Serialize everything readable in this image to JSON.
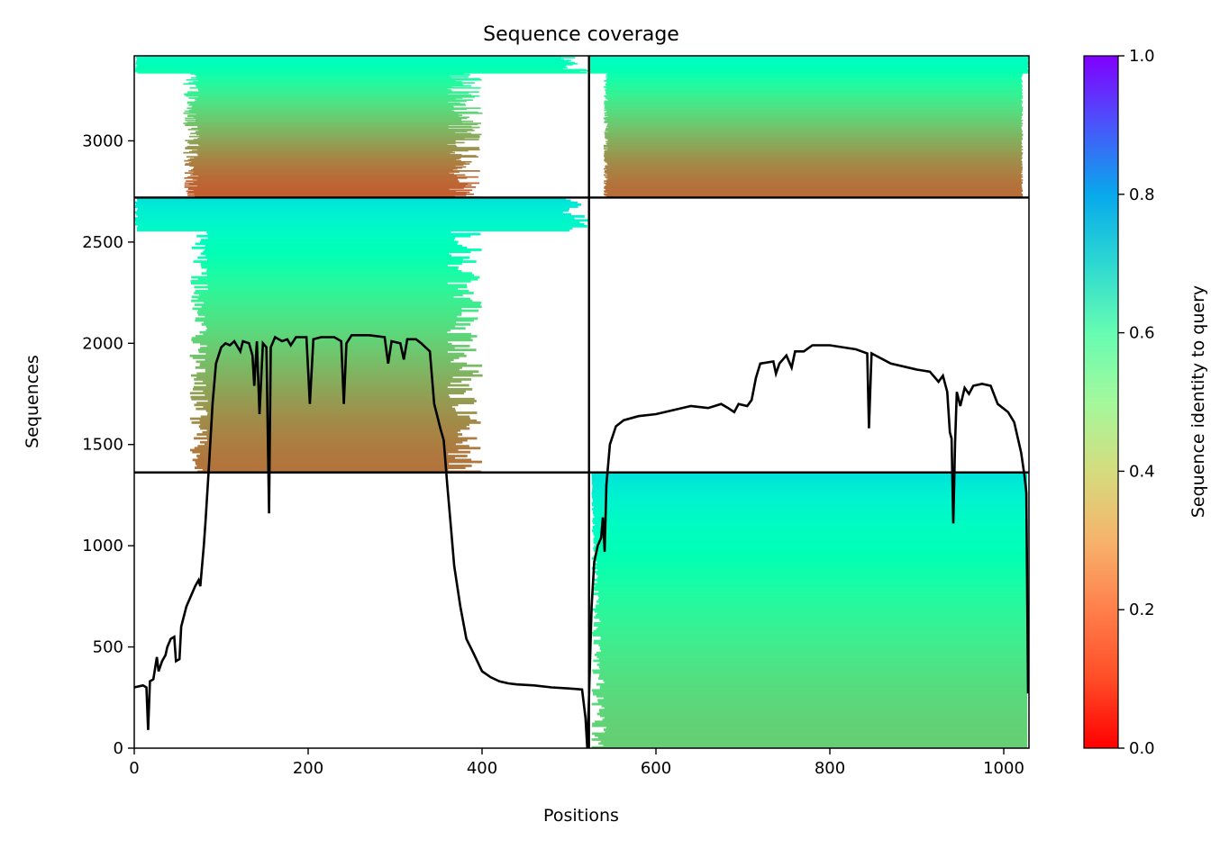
{
  "chart_data": {
    "type": "heatmap",
    "title": "Sequence coverage",
    "xlabel": "Positions",
    "ylabel": "Sequences",
    "xlim": [
      0,
      1029
    ],
    "ylim": [
      0,
      3420
    ],
    "xticks": [
      0,
      200,
      400,
      600,
      800,
      1000
    ],
    "yticks": [
      0,
      500,
      1000,
      1500,
      2000,
      2500,
      3000
    ],
    "grid": false,
    "colorbar": {
      "label": "Sequence identity to query",
      "colormap": "rainbow_r",
      "range": [
        0.0,
        1.0
      ],
      "ticks": [
        0.0,
        0.2,
        0.4,
        0.6,
        0.8,
        1.0
      ]
    },
    "blocks": {
      "divider_x": 523,
      "divider_y": [
        1362,
        2720
      ],
      "alignment_regions": [
        {
          "rows": [
            2720,
            3420
          ],
          "cols": [
            0,
            523
          ],
          "core_cols": [
            75,
            360
          ],
          "identity_range": [
            0.12,
            0.55
          ]
        },
        {
          "rows": [
            2720,
            3420
          ],
          "cols": [
            523,
            1029
          ],
          "core_cols": [
            545,
            1020
          ],
          "identity_range": [
            0.14,
            0.56
          ]
        },
        {
          "rows": [
            1362,
            2720
          ],
          "cols": [
            0,
            523
          ],
          "core_cols": [
            85,
            360
          ],
          "identity_range": [
            0.15,
            0.65
          ]
        },
        {
          "rows": [
            0,
            1362
          ],
          "cols": [
            523,
            1029
          ],
          "core_cols": [
            523,
            1029
          ],
          "identity_range": [
            0.3,
            0.65
          ]
        }
      ]
    },
    "coverage_line": [
      [
        0,
        300
      ],
      [
        10,
        310
      ],
      [
        14,
        300
      ],
      [
        16,
        90
      ],
      [
        18,
        330
      ],
      [
        22,
        340
      ],
      [
        26,
        450
      ],
      [
        28,
        380
      ],
      [
        32,
        430
      ],
      [
        36,
        460
      ],
      [
        38,
        500
      ],
      [
        42,
        540
      ],
      [
        46,
        550
      ],
      [
        48,
        430
      ],
      [
        52,
        440
      ],
      [
        54,
        600
      ],
      [
        60,
        700
      ],
      [
        66,
        760
      ],
      [
        70,
        800
      ],
      [
        74,
        830
      ],
      [
        76,
        800
      ],
      [
        80,
        1000
      ],
      [
        82,
        1120
      ],
      [
        86,
        1400
      ],
      [
        90,
        1700
      ],
      [
        94,
        1900
      ],
      [
        100,
        1980
      ],
      [
        105,
        2000
      ],
      [
        110,
        1990
      ],
      [
        115,
        2010
      ],
      [
        122,
        1960
      ],
      [
        125,
        2010
      ],
      [
        132,
        2000
      ],
      [
        136,
        1940
      ],
      [
        138,
        1790
      ],
      [
        141,
        2010
      ],
      [
        144,
        1650
      ],
      [
        148,
        2000
      ],
      [
        152,
        1980
      ],
      [
        155,
        1160
      ],
      [
        157,
        1980
      ],
      [
        162,
        2030
      ],
      [
        170,
        2010
      ],
      [
        176,
        2020
      ],
      [
        180,
        1990
      ],
      [
        186,
        2030
      ],
      [
        198,
        2030
      ],
      [
        202,
        1700
      ],
      [
        206,
        2020
      ],
      [
        215,
        2030
      ],
      [
        230,
        2030
      ],
      [
        238,
        2010
      ],
      [
        241,
        1700
      ],
      [
        244,
        2000
      ],
      [
        250,
        2040
      ],
      [
        270,
        2040
      ],
      [
        288,
        2030
      ],
      [
        292,
        1900
      ],
      [
        296,
        2010
      ],
      [
        306,
        2000
      ],
      [
        310,
        1920
      ],
      [
        314,
        2020
      ],
      [
        324,
        2020
      ],
      [
        330,
        2000
      ],
      [
        340,
        1960
      ],
      [
        345,
        1700
      ],
      [
        348,
        1650
      ],
      [
        352,
        1580
      ],
      [
        356,
        1520
      ],
      [
        360,
        1300
      ],
      [
        364,
        1100
      ],
      [
        368,
        900
      ],
      [
        375,
        700
      ],
      [
        382,
        540
      ],
      [
        390,
        470
      ],
      [
        400,
        380
      ],
      [
        410,
        350
      ],
      [
        420,
        330
      ],
      [
        430,
        320
      ],
      [
        440,
        315
      ],
      [
        460,
        310
      ],
      [
        480,
        300
      ],
      [
        500,
        295
      ],
      [
        515,
        290
      ],
      [
        519,
        150
      ],
      [
        521,
        0
      ],
      [
        523,
        250
      ],
      [
        526,
        700
      ],
      [
        529,
        920
      ],
      [
        533,
        1000
      ],
      [
        537,
        1040
      ],
      [
        539,
        1140
      ],
      [
        541,
        970
      ],
      [
        543,
        1300
      ],
      [
        547,
        1500
      ],
      [
        554,
        1590
      ],
      [
        563,
        1620
      ],
      [
        580,
        1640
      ],
      [
        600,
        1650
      ],
      [
        620,
        1670
      ],
      [
        640,
        1690
      ],
      [
        660,
        1680
      ],
      [
        675,
        1700
      ],
      [
        683,
        1680
      ],
      [
        690,
        1660
      ],
      [
        695,
        1700
      ],
      [
        705,
        1690
      ],
      [
        710,
        1720
      ],
      [
        715,
        1830
      ],
      [
        720,
        1900
      ],
      [
        735,
        1910
      ],
      [
        738,
        1850
      ],
      [
        742,
        1900
      ],
      [
        750,
        1940
      ],
      [
        756,
        1880
      ],
      [
        760,
        1960
      ],
      [
        770,
        1960
      ],
      [
        780,
        1990
      ],
      [
        800,
        1990
      ],
      [
        830,
        1970
      ],
      [
        843,
        1950
      ],
      [
        845,
        1580
      ],
      [
        848,
        1950
      ],
      [
        870,
        1900
      ],
      [
        900,
        1870
      ],
      [
        915,
        1860
      ],
      [
        925,
        1810
      ],
      [
        930,
        1840
      ],
      [
        935,
        1760
      ],
      [
        938,
        1560
      ],
      [
        940,
        1530
      ],
      [
        942,
        1110
      ],
      [
        944,
        1510
      ],
      [
        946,
        1760
      ],
      [
        950,
        1690
      ],
      [
        955,
        1780
      ],
      [
        960,
        1750
      ],
      [
        965,
        1790
      ],
      [
        975,
        1800
      ],
      [
        985,
        1790
      ],
      [
        993,
        1700
      ],
      [
        1005,
        1660
      ],
      [
        1012,
        1610
      ],
      [
        1020,
        1460
      ],
      [
        1024,
        1340
      ],
      [
        1026,
        1260
      ],
      [
        1028,
        270
      ]
    ]
  }
}
